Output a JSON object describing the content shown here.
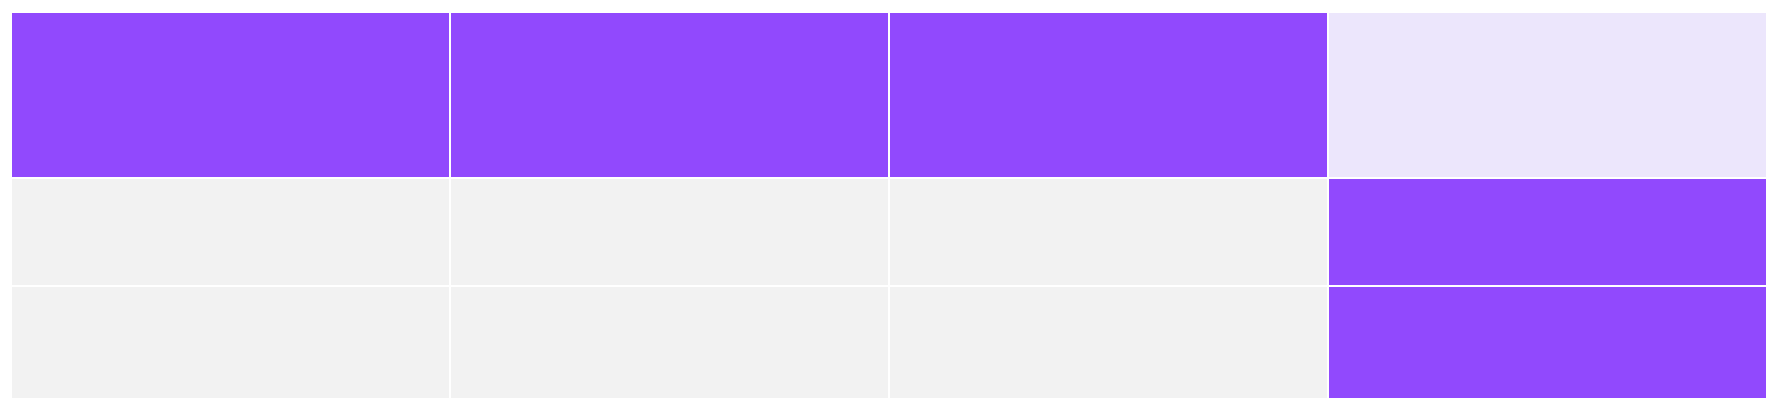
{
  "palette": {
    "accent": "#9149FD",
    "accent_light": "#ECE6FC",
    "neutral": "#F2F2F2",
    "background": "#FFFFFF"
  },
  "grid": {
    "columns": 4,
    "rows": [
      {
        "cells": [
          "accent",
          "accent",
          "accent",
          "accent_light"
        ]
      },
      {
        "cells": [
          "neutral",
          "neutral",
          "neutral",
          "accent"
        ]
      },
      {
        "cells": [
          "neutral",
          "neutral",
          "neutral",
          "accent"
        ]
      }
    ]
  }
}
